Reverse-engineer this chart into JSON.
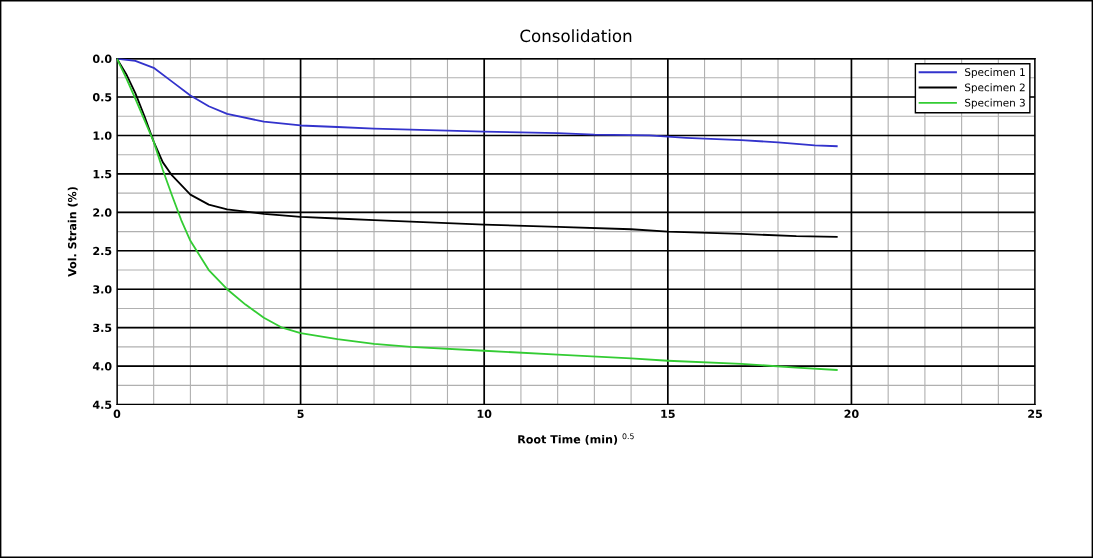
{
  "chart_data": {
    "type": "line",
    "title": "Consolidation",
    "xlabel": "Root Time (min) $^{0.5}$",
    "ylabel": "Vol. Strain (%)",
    "xlim": [
      0,
      25
    ],
    "xticks": [
      0,
      5,
      10,
      15,
      20,
      25
    ],
    "ylim": [
      4.5,
      0.0
    ],
    "yticks": [
      {
        "value": 0.0,
        "label": "0.0"
      },
      {
        "value": 0.5,
        "label": "0.5"
      },
      {
        "value": 1.0,
        "label": "1.0"
      },
      {
        "value": 1.5,
        "label": "1.5"
      },
      {
        "value": 2.0,
        "label": "2.0"
      },
      {
        "value": 2.5,
        "label": "2.5"
      },
      {
        "value": 3.0,
        "label": "3.0"
      },
      {
        "value": 3.5,
        "label": "3.5"
      },
      {
        "value": 4.0,
        "label": "4.0"
      },
      {
        "value": 4.5,
        "label": "4.5"
      }
    ],
    "grid": true,
    "legend": "top right",
    "marker": "none",
    "line_style": "solid",
    "series": [
      {
        "name": "Specimen 1",
        "color": "#3333cc",
        "x": [
          0,
          0.5,
          1,
          1.5,
          2,
          2.5,
          3,
          4,
          5,
          6,
          7,
          8.5,
          10,
          12,
          13,
          14.5,
          15.5,
          17,
          18,
          19,
          19.6
        ],
        "values": [
          0,
          0.03,
          0.12,
          0.3,
          0.48,
          0.62,
          0.72,
          0.82,
          0.87,
          0.89,
          0.91,
          0.93,
          0.95,
          0.97,
          0.99,
          1.0,
          1.03,
          1.06,
          1.09,
          1.13,
          1.14
        ]
      },
      {
        "name": "Specimen 2",
        "color": "#000000",
        "x": [
          0,
          0.25,
          0.5,
          0.75,
          1,
          1.25,
          1.5,
          2,
          2.5,
          3,
          4,
          5,
          6,
          7,
          8,
          10,
          12,
          14,
          15,
          17,
          18.5,
          19.6
        ],
        "values": [
          0,
          0.2,
          0.45,
          0.75,
          1.08,
          1.35,
          1.52,
          1.77,
          1.9,
          1.96,
          2.02,
          2.06,
          2.08,
          2.1,
          2.12,
          2.16,
          2.19,
          2.22,
          2.25,
          2.28,
          2.31,
          2.32
        ]
      },
      {
        "name": "Specimen 3",
        "color": "#33cc33",
        "x": [
          0,
          0.25,
          0.5,
          0.75,
          1,
          1.25,
          1.5,
          1.75,
          2,
          2.5,
          3,
          3.5,
          4,
          4.5,
          5,
          6,
          7,
          8,
          10,
          12,
          14,
          15,
          17,
          18.5,
          19.6
        ],
        "values": [
          0,
          0.25,
          0.52,
          0.8,
          1.08,
          1.45,
          1.78,
          2.1,
          2.37,
          2.75,
          3.0,
          3.2,
          3.37,
          3.5,
          3.57,
          3.65,
          3.71,
          3.75,
          3.8,
          3.85,
          3.9,
          3.93,
          3.97,
          4.02,
          4.05
        ]
      }
    ]
  }
}
